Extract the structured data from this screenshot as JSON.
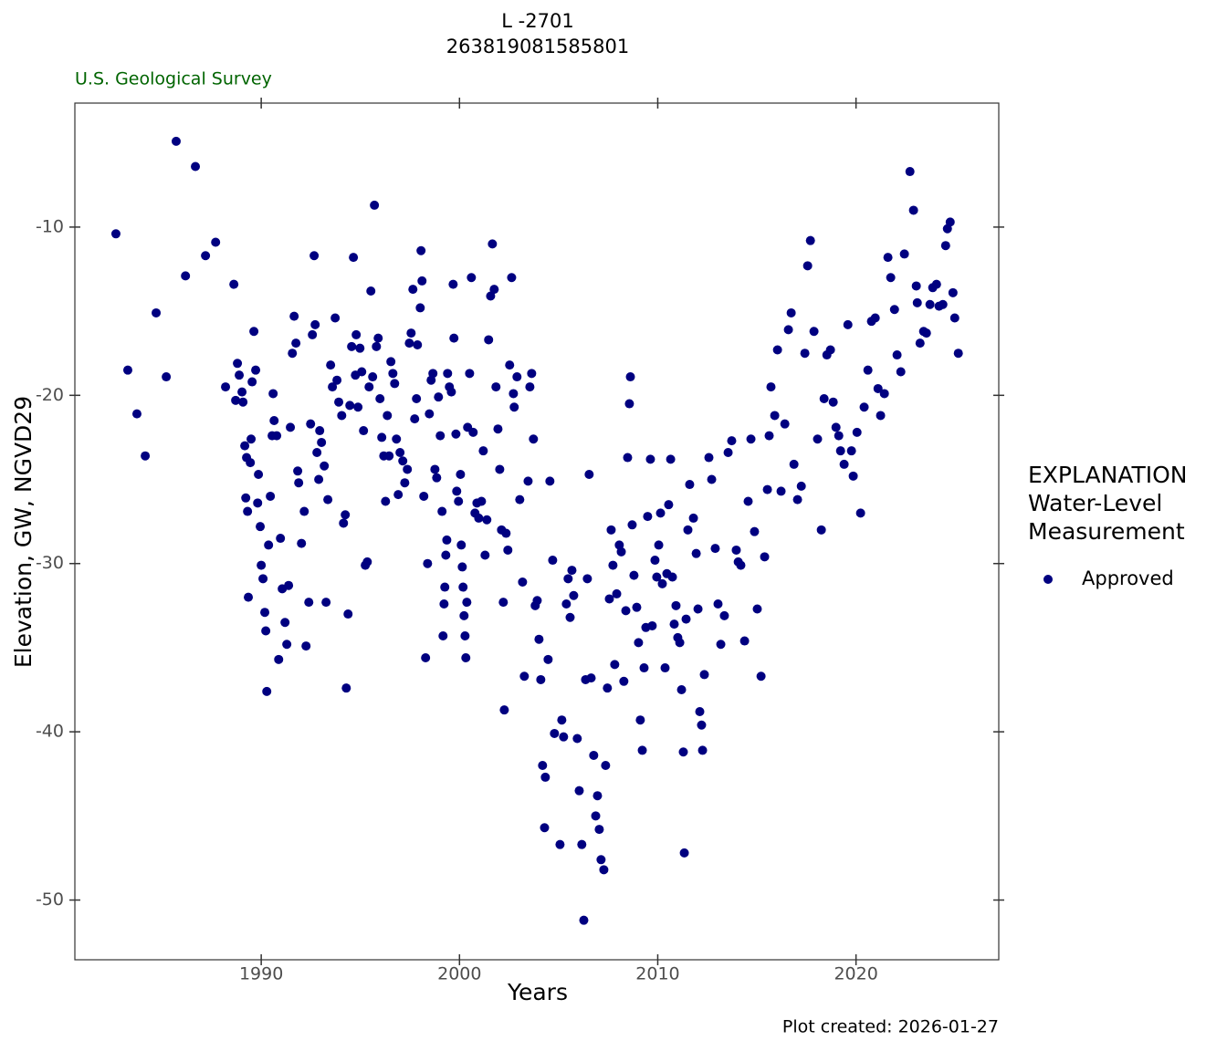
{
  "chart_data": {
    "type": "scatter",
    "title": "L -2701",
    "subtitle": "263819081585801",
    "source": "U.S. Geological Survey",
    "x_label": "Years",
    "y_label": "Elevation, GW, NGVD29",
    "caption": "Plot created: 2026-01-27",
    "legend_title": [
      "EXPLANATION",
      "Water-Level",
      "Measurement"
    ],
    "xlim": [
      1980.6,
      2027.2
    ],
    "ylim": [
      -53.55,
      -2.63
    ],
    "xticks": [
      1990,
      2000,
      2010,
      2020
    ],
    "yticks": [
      -50,
      -40,
      -30,
      -20,
      -10
    ],
    "grid": false,
    "series": [
      {
        "name": "Approved",
        "color": "#000080",
        "x": [
          1982.67,
          1983.27,
          1983.73,
          1984.15,
          1984.7,
          1985.21,
          1985.71,
          1986.18,
          1986.68,
          1987.19,
          1987.7,
          1988.2,
          1988.62,
          1988.8,
          1988.89,
          1988.71,
          1989.03,
          1989.08,
          1989.17,
          1989.22,
          1989.26,
          1989.31,
          1989.35,
          1989.45,
          1989.49,
          1989.54,
          1989.63,
          1989.72,
          1989.82,
          1989.86,
          1989.95,
          1990.0,
          1990.09,
          1990.18,
          1990.23,
          1990.28,
          1990.37,
          1990.46,
          1990.55,
          1990.6,
          1990.65,
          1990.78,
          1990.88,
          1990.97,
          1991.06,
          1991.2,
          1991.29,
          1991.38,
          1991.47,
          1991.57,
          1991.66,
          1991.75,
          1991.84,
          1991.89,
          1992.03,
          1992.17,
          1992.26,
          1992.4,
          1992.49,
          1992.58,
          1992.67,
          1992.72,
          1992.81,
          1992.9,
          1992.95,
          1993.04,
          1993.18,
          1993.27,
          1993.36,
          1993.5,
          1993.59,
          1993.73,
          1993.82,
          1993.91,
          1994.06,
          1994.15,
          1994.24,
          1994.29,
          1994.38,
          1994.47,
          1994.56,
          1994.65,
          1994.75,
          1994.79,
          1994.88,
          1994.98,
          1995.07,
          1995.16,
          1995.25,
          1995.35,
          1995.44,
          1995.53,
          1995.62,
          1995.71,
          1995.81,
          1995.9,
          1995.99,
          1996.08,
          1996.18,
          1996.27,
          1996.36,
          1996.45,
          1996.54,
          1996.64,
          1996.73,
          1996.82,
          1996.91,
          1997.0,
          1997.14,
          1997.24,
          1997.37,
          1997.47,
          1997.56,
          1997.65,
          1997.74,
          1997.83,
          1997.88,
          1998.02,
          1998.06,
          1998.11,
          1998.2,
          1998.29,
          1998.39,
          1998.48,
          1998.57,
          1998.66,
          1998.76,
          1998.85,
          1998.94,
          1999.03,
          1999.12,
          1999.17,
          1999.22,
          1999.26,
          1999.31,
          1999.36,
          1999.4,
          1999.49,
          1999.59,
          1999.68,
          1999.72,
          1999.82,
          1999.86,
          1999.95,
          2000.05,
          2000.09,
          2000.14,
          2000.18,
          2000.23,
          2000.28,
          2000.32,
          2000.37,
          2000.41,
          2000.51,
          2000.6,
          2000.69,
          2000.78,
          2000.88,
          2000.97,
          2001.11,
          2001.2,
          2001.29,
          2001.38,
          2001.47,
          2001.57,
          2001.66,
          2001.75,
          2001.84,
          2001.94,
          2002.03,
          2002.12,
          2002.21,
          2002.26,
          2002.35,
          2002.44,
          2002.53,
          2002.63,
          2002.72,
          2002.76,
          2002.9,
          2003.04,
          2003.18,
          2003.27,
          2003.46,
          2003.55,
          2003.64,
          2003.73,
          2003.82,
          2003.92,
          2004.01,
          2004.1,
          2004.19,
          2004.33,
          2004.29,
          2004.47,
          2004.56,
          2004.7,
          2004.79,
          2005.07,
          2005.16,
          2005.25,
          2005.39,
          2005.48,
          2005.58,
          2005.67,
          2005.76,
          2005.94,
          2006.04,
          2006.17,
          2006.27,
          2006.36,
          2006.45,
          2006.54,
          2006.64,
          2006.77,
          2006.87,
          2006.96,
          2007.05,
          2007.14,
          2007.28,
          2007.37,
          2007.46,
          2007.56,
          2007.65,
          2007.74,
          2007.83,
          2007.93,
          2008.06,
          2008.16,
          2008.29,
          2008.39,
          2008.48,
          2008.57,
          2008.62,
          2008.71,
          2008.8,
          2008.94,
          2009.03,
          2009.12,
          2009.22,
          2009.31,
          2009.4,
          2009.49,
          2009.63,
          2009.72,
          2009.86,
          2009.95,
          2010.05,
          2010.14,
          2010.23,
          2010.37,
          2010.46,
          2010.55,
          2010.65,
          2010.74,
          2010.83,
          2010.92,
          2011.01,
          2011.11,
          2011.2,
          2011.29,
          2011.34,
          2011.43,
          2011.52,
          2011.61,
          2011.8,
          2011.94,
          2012.03,
          2012.12,
          2012.21,
          2012.26,
          2012.35,
          2012.58,
          2012.72,
          2012.9,
          2013.04,
          2013.18,
          2013.36,
          2013.55,
          2013.73,
          2013.96,
          2014.06,
          2014.19,
          2014.38,
          2014.56,
          2014.7,
          2014.88,
          2015.02,
          2015.21,
          2015.39,
          2015.53,
          2015.62,
          2015.71,
          2015.9,
          2016.04,
          2016.22,
          2016.41,
          2016.59,
          2016.73,
          2016.87,
          2017.05,
          2017.24,
          2017.42,
          2017.56,
          2017.7,
          2017.88,
          2018.06,
          2018.25,
          2018.39,
          2018.53,
          2018.71,
          2018.85,
          2018.99,
          2019.13,
          2019.22,
          2019.4,
          2019.59,
          2019.77,
          2019.86,
          2020.05,
          2020.23,
          2020.41,
          2020.6,
          2020.78,
          2020.97,
          2021.11,
          2021.24,
          2021.43,
          2021.61,
          2021.75,
          2021.94,
          2022.07,
          2022.26,
          2022.44,
          2022.72,
          2022.9,
          2023.04,
          2023.09,
          2023.23,
          2023.41,
          2023.55,
          2023.73,
          2023.87,
          2024.06,
          2024.19,
          2024.38,
          2024.52,
          2024.61,
          2024.75,
          2024.89,
          2024.98,
          2025.16
        ],
        "values": [
          -10.4,
          -18.5,
          -21.1,
          -23.6,
          -15.1,
          -18.9,
          -4.9,
          -12.9,
          -6.4,
          -11.7,
          -10.9,
          -19.5,
          -13.4,
          -18.1,
          -18.8,
          -20.3,
          -19.8,
          -20.4,
          -23.0,
          -26.1,
          -23.7,
          -26.9,
          -32.0,
          -24.0,
          -22.6,
          -19.2,
          -16.2,
          -18.5,
          -26.4,
          -24.7,
          -27.8,
          -30.1,
          -30.9,
          -32.9,
          -34.0,
          -37.6,
          -28.9,
          -26.0,
          -22.4,
          -19.9,
          -21.5,
          -22.4,
          -35.7,
          -28.5,
          -31.5,
          -33.5,
          -34.8,
          -31.3,
          -21.9,
          -17.5,
          -15.3,
          -16.9,
          -24.5,
          -25.2,
          -28.8,
          -26.9,
          -34.9,
          -32.3,
          -21.7,
          -16.4,
          -11.7,
          -15.8,
          -23.4,
          -25.0,
          -22.1,
          -22.8,
          -24.2,
          -32.3,
          -26.2,
          -18.2,
          -19.5,
          -15.4,
          -19.1,
          -20.4,
          -21.2,
          -27.6,
          -27.1,
          -37.4,
          -33.0,
          -20.6,
          -17.1,
          -11.8,
          -18.8,
          -16.4,
          -20.7,
          -17.2,
          -18.6,
          -22.1,
          -30.1,
          -29.9,
          -19.5,
          -13.8,
          -18.9,
          -8.7,
          -17.1,
          -16.6,
          -20.2,
          -22.5,
          -23.6,
          -26.3,
          -21.2,
          -23.6,
          -18.0,
          -18.7,
          -19.3,
          -22.6,
          -25.9,
          -23.4,
          -23.9,
          -25.2,
          -24.4,
          -16.9,
          -16.3,
          -13.7,
          -21.4,
          -20.2,
          -17.0,
          -14.8,
          -11.4,
          -13.2,
          -26.0,
          -35.6,
          -30.0,
          -21.1,
          -19.1,
          -18.7,
          -24.4,
          -24.9,
          -20.1,
          -22.4,
          -26.9,
          -34.3,
          -32.4,
          -31.4,
          -29.5,
          -28.6,
          -18.7,
          -19.5,
          -19.8,
          -13.4,
          -16.6,
          -22.3,
          -25.7,
          -26.3,
          -24.7,
          -28.9,
          -30.2,
          -31.4,
          -33.1,
          -34.3,
          -35.6,
          -32.3,
          -21.9,
          -18.7,
          -13.0,
          -22.2,
          -27.0,
          -26.4,
          -27.3,
          -26.3,
          -23.3,
          -29.5,
          -27.4,
          -16.7,
          -14.1,
          -11.0,
          -13.7,
          -19.5,
          -22.0,
          -24.4,
          -28.0,
          -32.3,
          -38.7,
          -28.2,
          -29.2,
          -18.2,
          -13.0,
          -19.9,
          -20.7,
          -18.9,
          -26.2,
          -31.1,
          -36.7,
          -25.1,
          -19.5,
          -18.7,
          -22.6,
          -32.5,
          -32.2,
          -34.5,
          -36.9,
          -42.0,
          -42.7,
          -45.7,
          -35.7,
          -25.1,
          -29.8,
          -40.1,
          -46.7,
          -39.3,
          -40.3,
          -32.4,
          -30.9,
          -33.2,
          -30.4,
          -31.9,
          -40.4,
          -43.5,
          -46.7,
          -51.2,
          -36.9,
          -30.9,
          -24.7,
          -36.8,
          -41.4,
          -45.0,
          -43.8,
          -45.8,
          -47.6,
          -48.2,
          -42.0,
          -37.4,
          -32.1,
          -28.0,
          -30.1,
          -36.0,
          -31.8,
          -28.9,
          -29.3,
          -37.0,
          -32.8,
          -23.7,
          -20.5,
          -18.9,
          -27.7,
          -30.7,
          -32.6,
          -34.7,
          -39.3,
          -41.1,
          -36.2,
          -33.8,
          -27.2,
          -23.8,
          -33.7,
          -29.8,
          -30.8,
          -28.9,
          -27.0,
          -31.2,
          -36.2,
          -30.6,
          -26.5,
          -23.8,
          -30.8,
          -33.6,
          -32.5,
          -34.4,
          -34.7,
          -37.5,
          -41.2,
          -47.2,
          -33.3,
          -28.0,
          -25.3,
          -27.3,
          -29.4,
          -32.7,
          -38.8,
          -39.6,
          -41.1,
          -36.6,
          -23.7,
          -25.0,
          -29.1,
          -32.4,
          -34.8,
          -33.1,
          -23.4,
          -22.7,
          -29.2,
          -29.9,
          -30.1,
          -34.6,
          -26.3,
          -22.6,
          -28.1,
          -32.7,
          -36.7,
          -29.6,
          -25.6,
          -22.4,
          -19.5,
          -21.2,
          -17.3,
          -25.7,
          -21.7,
          -16.1,
          -15.1,
          -24.1,
          -26.2,
          -25.4,
          -17.5,
          -12.3,
          -10.8,
          -16.2,
          -22.6,
          -28.0,
          -20.2,
          -17.6,
          -17.3,
          -20.4,
          -21.9,
          -22.4,
          -23.3,
          -24.1,
          -15.8,
          -23.3,
          -24.8,
          -22.2,
          -27.0,
          -20.7,
          -18.5,
          -15.6,
          -15.4,
          -19.6,
          -21.2,
          -19.9,
          -11.8,
          -13.0,
          -14.9,
          -17.6,
          -18.6,
          -11.6,
          -6.7,
          -9.0,
          -13.5,
          -14.5,
          -16.9,
          -16.2,
          -16.3,
          -14.6,
          -13.6,
          -13.4,
          -14.7,
          -14.6,
          -11.1,
          -10.1,
          -9.7,
          -13.9,
          -15.4,
          -17.5
        ]
      }
    ]
  }
}
